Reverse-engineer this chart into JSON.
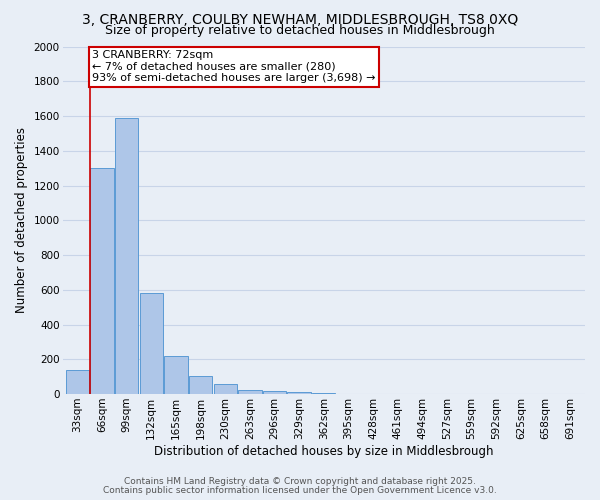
{
  "title1": "3, CRANBERRY, COULBY NEWHAM, MIDDLESBROUGH, TS8 0XQ",
  "title2": "Size of property relative to detached houses in Middlesbrough",
  "xlabel": "Distribution of detached houses by size in Middlesbrough",
  "ylabel": "Number of detached properties",
  "categories": [
    "33sqm",
    "66sqm",
    "99sqm",
    "132sqm",
    "165sqm",
    "198sqm",
    "230sqm",
    "263sqm",
    "296sqm",
    "329sqm",
    "362sqm",
    "395sqm",
    "428sqm",
    "461sqm",
    "494sqm",
    "527sqm",
    "559sqm",
    "592sqm",
    "625sqm",
    "658sqm",
    "691sqm"
  ],
  "values": [
    140,
    1300,
    1590,
    580,
    220,
    105,
    55,
    25,
    15,
    10,
    5,
    2,
    1,
    1,
    1,
    1,
    1,
    0,
    0,
    0,
    0
  ],
  "bar_color": "#aec6e8",
  "bar_edge_color": "#5b9bd5",
  "background_color": "#e8eef6",
  "grid_color": "#c8d4e8",
  "vline_color": "#cc0000",
  "annotation_text": "3 CRANBERRY: 72sqm\n← 7% of detached houses are smaller (280)\n93% of semi-detached houses are larger (3,698) →",
  "annotation_box_color": "#ffffff",
  "annotation_box_edgecolor": "#cc0000",
  "ylim": [
    0,
    2000
  ],
  "yticks": [
    0,
    200,
    400,
    600,
    800,
    1000,
    1200,
    1400,
    1600,
    1800,
    2000
  ],
  "footnote1": "Contains HM Land Registry data © Crown copyright and database right 2025.",
  "footnote2": "Contains public sector information licensed under the Open Government Licence v3.0.",
  "title_fontsize": 10,
  "subtitle_fontsize": 9,
  "axis_label_fontsize": 8.5,
  "tick_fontsize": 7.5,
  "annotation_fontsize": 8,
  "footnote_fontsize": 6.5
}
